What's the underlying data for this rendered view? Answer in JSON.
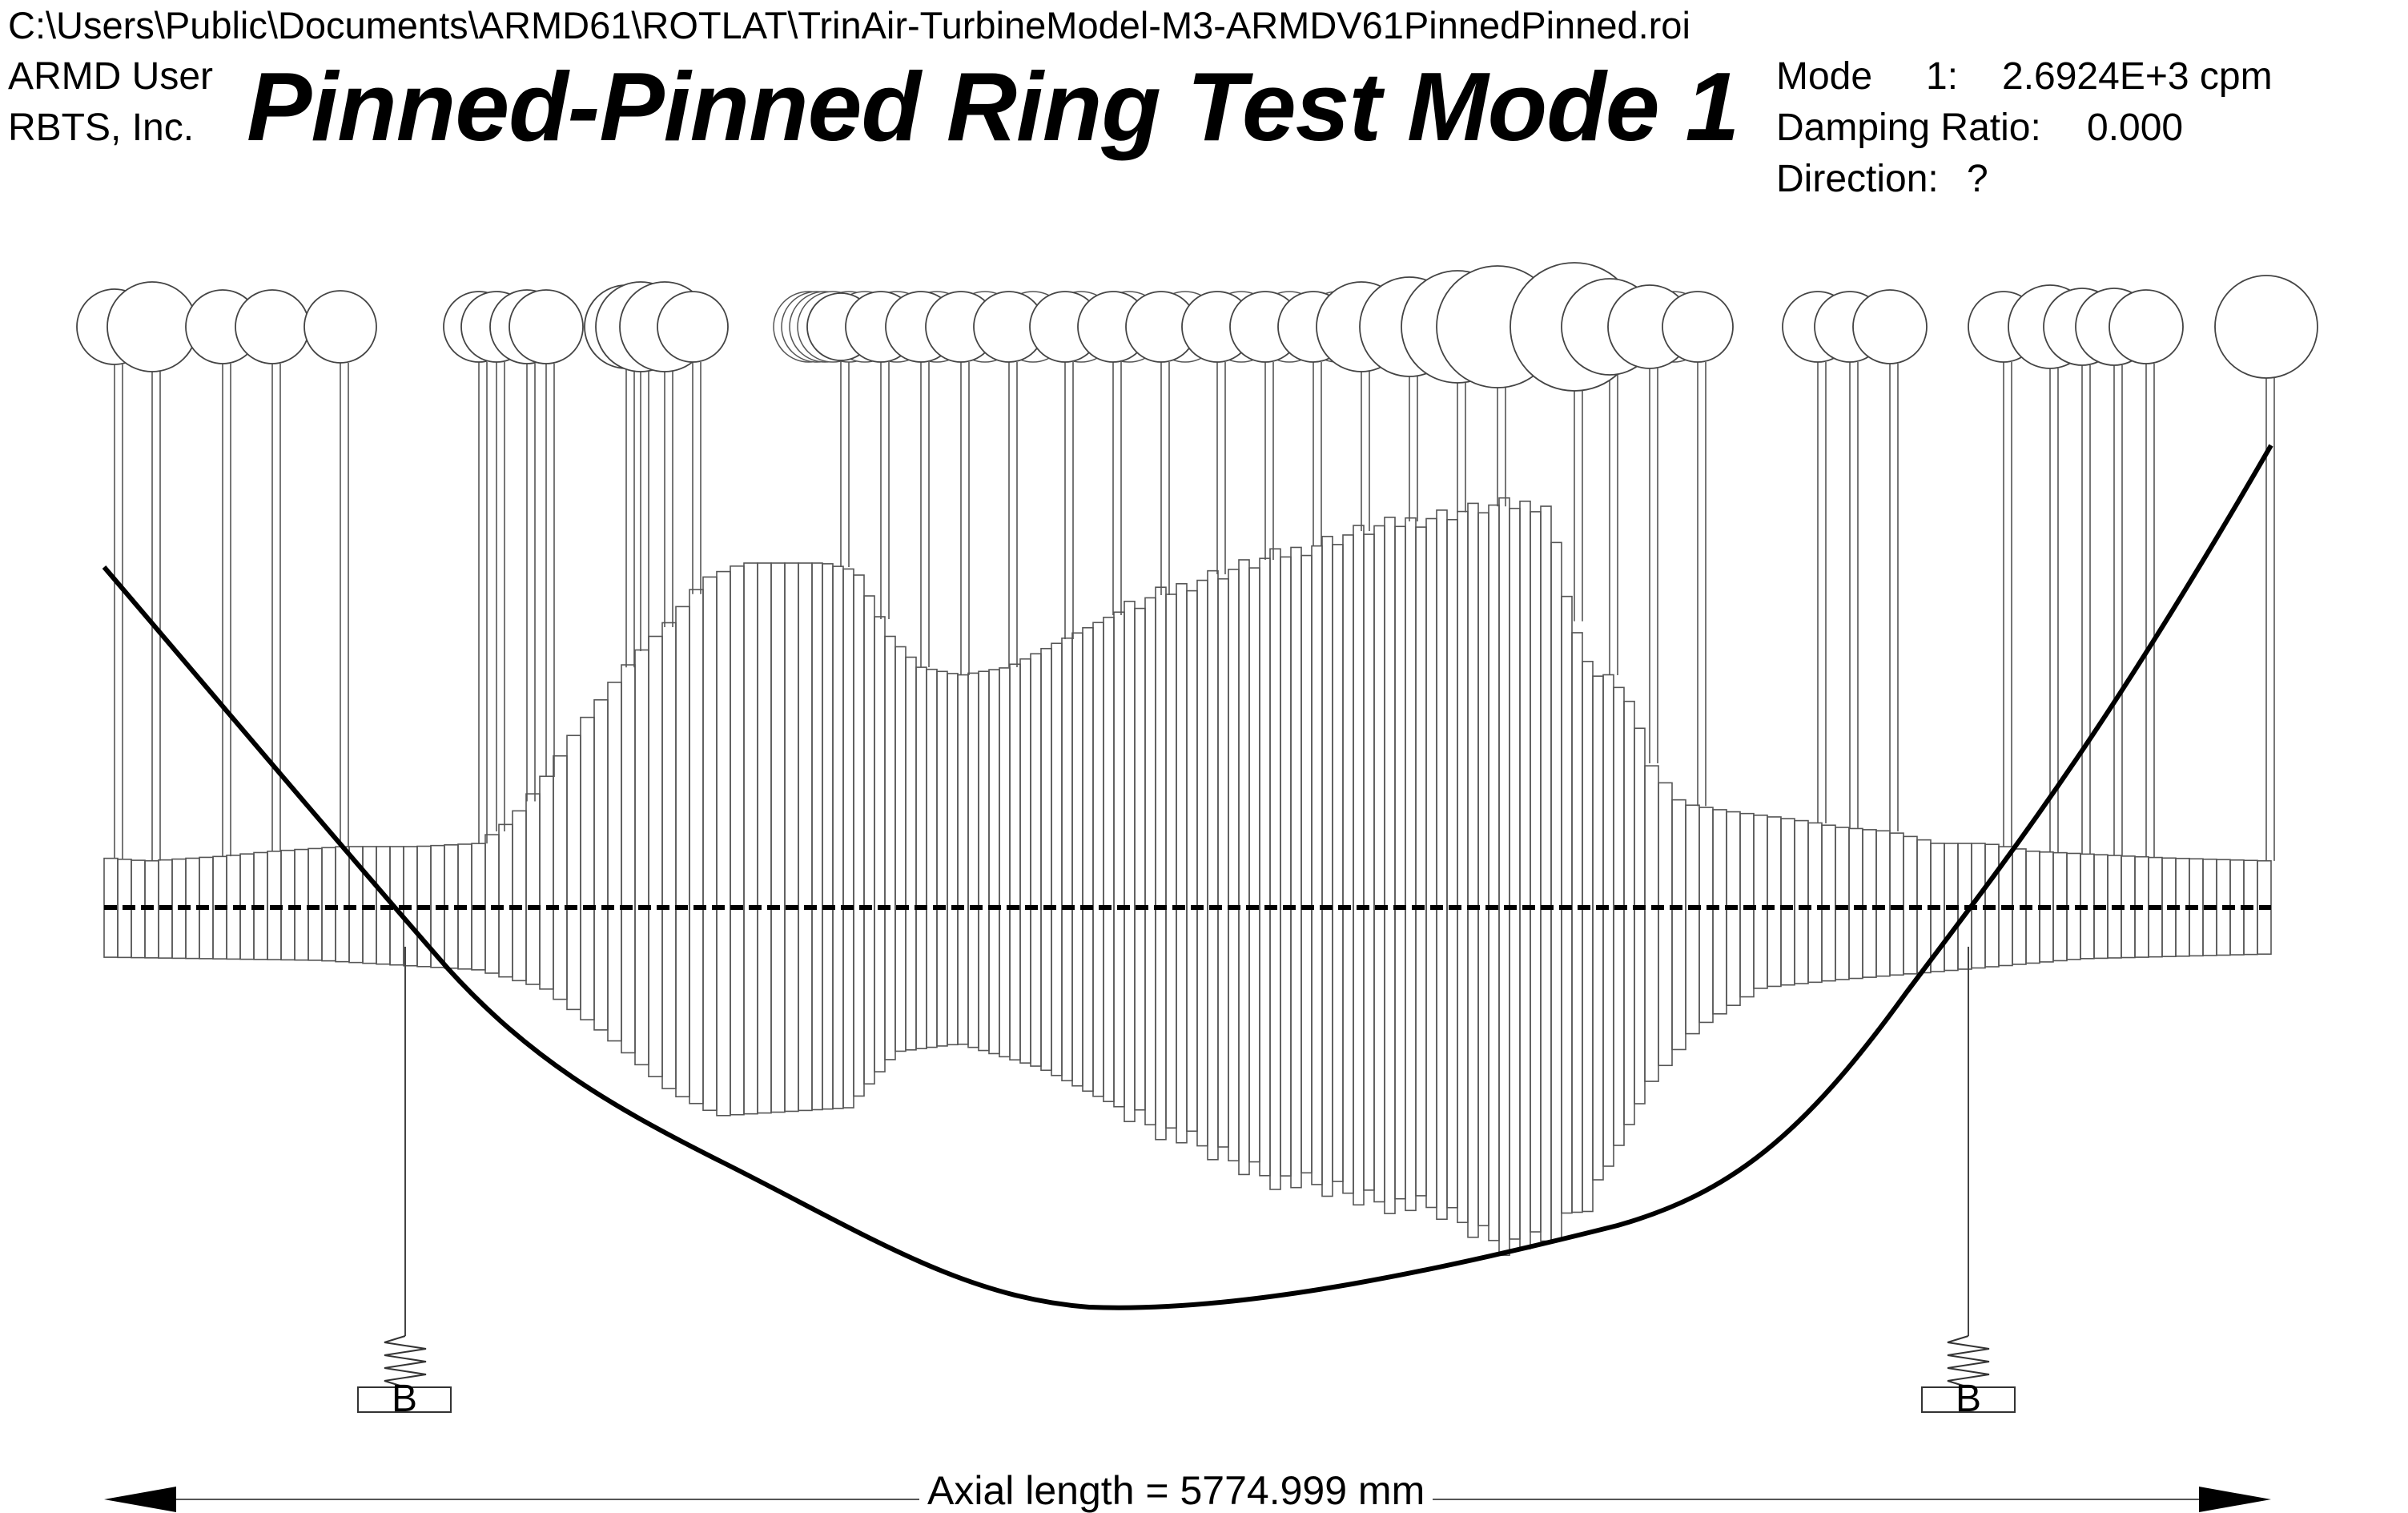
{
  "header": {
    "file_path": "C:\\Users\\Public\\Documents\\ARMD61\\ROTLAT\\TrinAir-TurbineModel-M3-ARMDV61PinnedPinned.roi",
    "user": "ARMD User",
    "company": "RBTS, Inc.",
    "title": "Pinned-Pinned Ring Test Mode 1",
    "mode_label": "Mode",
    "mode_number": "1:",
    "mode_frequency": "2.6924E+3 cpm",
    "damping_label": "Damping Ratio:",
    "damping_value": "0.000",
    "direction_label": "Direction:",
    "direction_value": "?"
  },
  "bearings": [
    {
      "label": "B"
    },
    {
      "label": "B"
    }
  ],
  "axial_length_label": "Axial length = 5774.999 mm",
  "line_color": "#000000",
  "element_color": "#555555"
}
